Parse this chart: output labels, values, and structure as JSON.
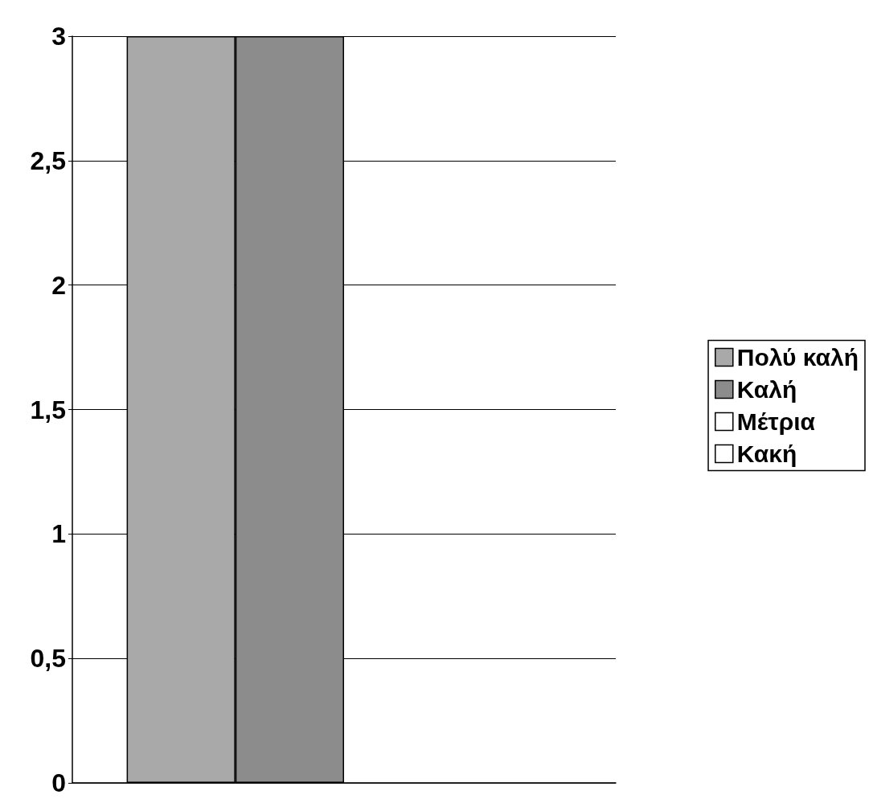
{
  "chart_data": {
    "type": "bar",
    "categories": [
      null
    ],
    "series": [
      {
        "name": "Πολύ καλή",
        "color": "#a9a9a9",
        "values": [
          3
        ]
      },
      {
        "name": "Καλή",
        "color": "#8c8c8c",
        "values": [
          3
        ]
      },
      {
        "name": "Μέτρια",
        "color": "#ffffff",
        "values": [
          0
        ]
      },
      {
        "name": "Κακή",
        "color": "#ffffff",
        "values": [
          0
        ]
      }
    ],
    "ylim": [
      0,
      3
    ],
    "yticks": [
      0,
      {
        "value": 0.5,
        "label": "0,5"
      },
      1,
      {
        "value": 1.5,
        "label": "1,5"
      },
      2,
      {
        "value": 2.5,
        "label": "2,5"
      },
      3
    ],
    "grid": "y",
    "legend": "right"
  }
}
